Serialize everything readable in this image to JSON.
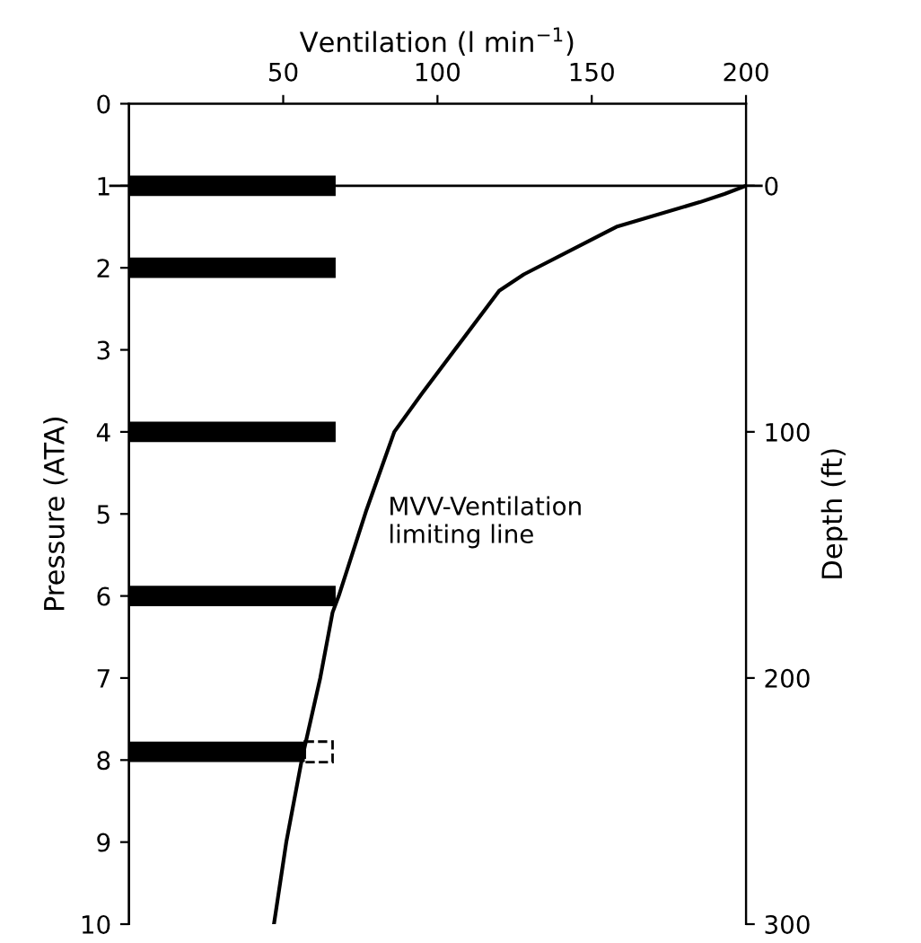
{
  "chart_data": {
    "type": "bar",
    "orientation": "horizontal",
    "xlabel": "Ventilation (l min$^{−1}$)",
    "ylabel": "Pressure (ATA)",
    "y2label": "Depth (ft)",
    "xlim": [
      0,
      200
    ],
    "xticks": [
      50,
      100,
      150,
      200
    ],
    "ylim": [
      10,
      0
    ],
    "yticks": [
      0,
      1,
      2,
      3,
      4,
      5,
      6,
      7,
      8,
      9,
      10
    ],
    "y2lim": [
      300,
      -33.3
    ],
    "y2ticks": [
      0,
      100,
      200,
      300
    ],
    "series": [
      {
        "color": "#000000",
        "x": [
          1,
          2,
          4,
          6,
          7.9
        ],
        "values": [
          67,
          67,
          67,
          67,
          57
        ]
      },
      {
        "type": "bar",
        "color": "#000000",
        "line_style": "dashed",
        "x": [
          7.9
        ],
        "base": [
          57
        ],
        "values": [
          9
        ]
      },
      {
        "type": "line",
        "color": "#000000",
        "x": [
          1,
          1.1,
          1.2,
          1.5,
          2.08,
          2.28,
          3.53,
          4,
          4.95,
          6,
          6.2,
          7,
          8,
          9,
          10
        ],
        "values": [
          200,
          193,
          185,
          158,
          128,
          120,
          95,
          86,
          77,
          68,
          66,
          62,
          56,
          51,
          47
        ]
      }
    ],
    "ref_lines": [
      {
        "axis": "y",
        "value": 1,
        "color": "#000000"
      }
    ],
    "annotations": [
      "MVV-Ventilation\nlimiting line"
    ],
    "grid": false,
    "legend": false
  }
}
